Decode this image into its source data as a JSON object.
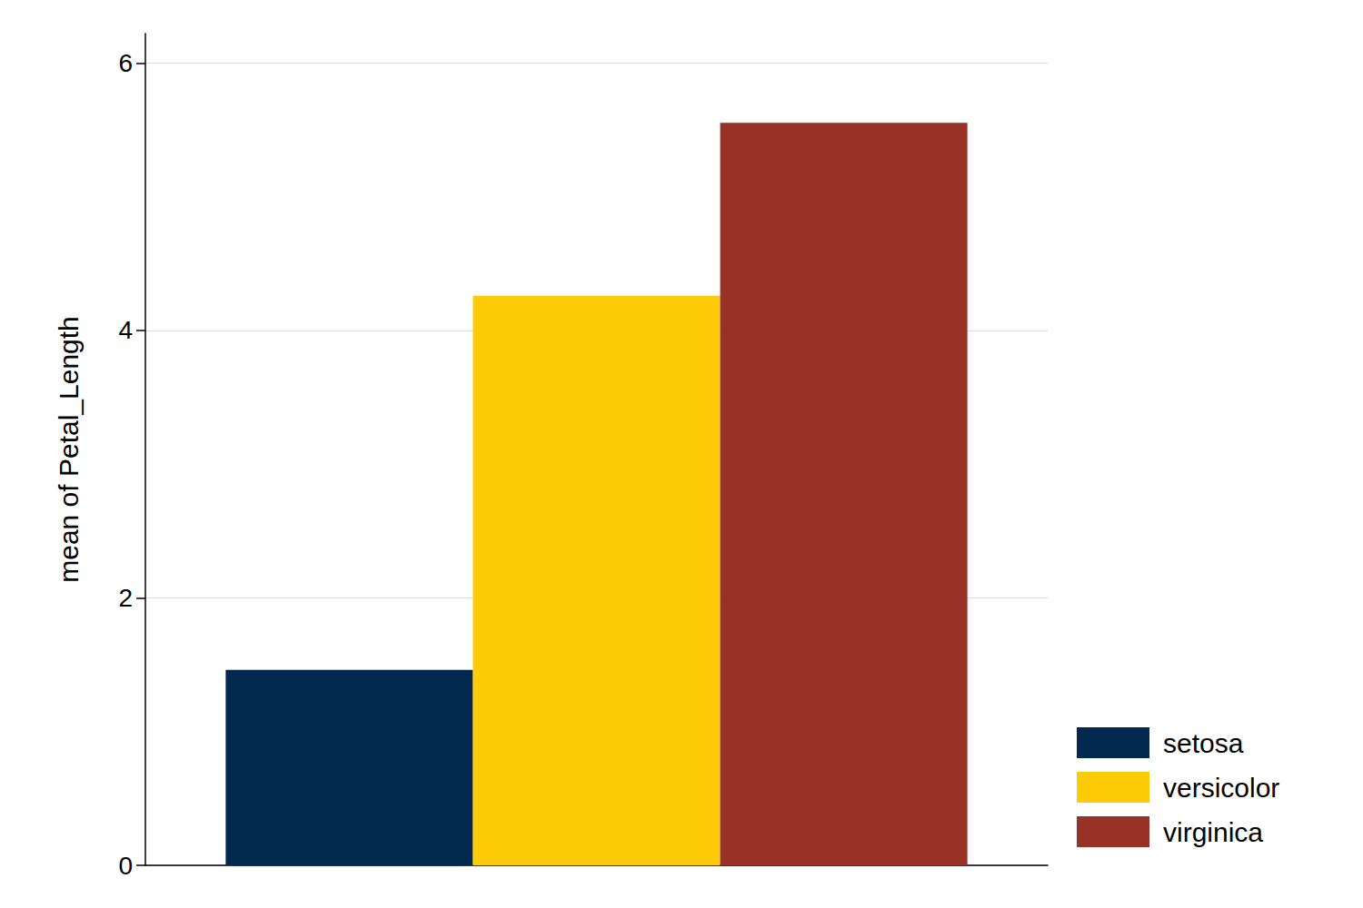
{
  "chart_data": {
    "type": "bar",
    "y_label": "mean of Petal_Length",
    "categories": [
      null
    ],
    "series": [
      {
        "name": "setosa",
        "color": "#03284d",
        "values": [
          1.462
        ]
      },
      {
        "name": "versicolor",
        "color": "#fcca07",
        "values": [
          4.26
        ]
      },
      {
        "name": "virginica",
        "color": "#983227",
        "values": [
          5.552
        ]
      }
    ],
    "ylim": [
      0,
      6.22
    ],
    "yticks": [
      0,
      2,
      4,
      6
    ],
    "grid": true,
    "legend": "right",
    "tick_labels": "y"
  }
}
